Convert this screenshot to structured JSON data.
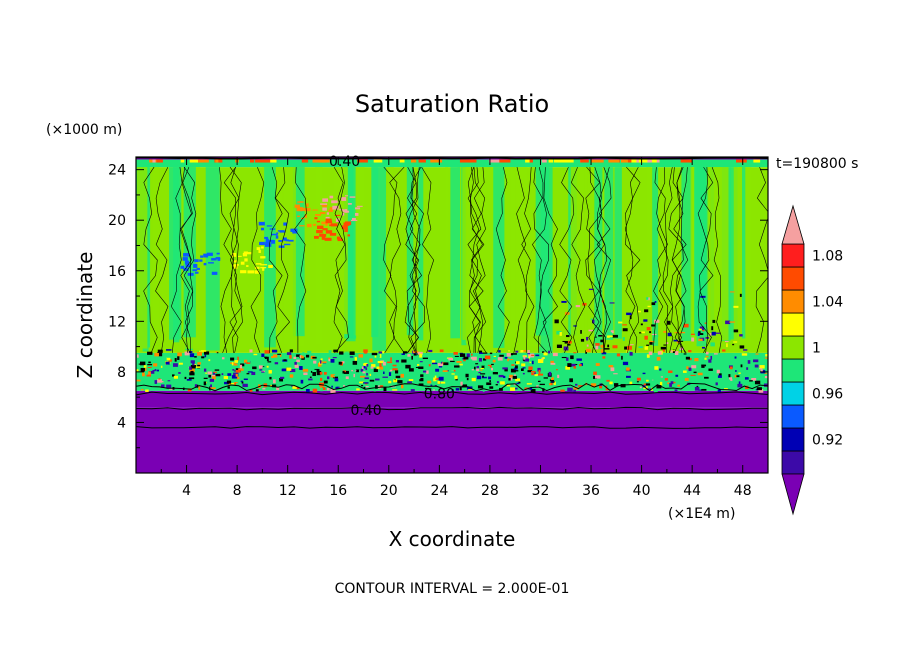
{
  "chart_data": {
    "type": "heatmap",
    "title": "Saturation Ratio",
    "xlabel": "X coordinate",
    "ylabel": "Z coordinate",
    "x_unit": "(×1E4 m)",
    "y_unit": "(×1000 m)",
    "time_label": "t=190800 s",
    "footer": "CONTOUR INTERVAL = 2.000E-01",
    "xlim": [
      0,
      50
    ],
    "ylim": [
      0,
      25
    ],
    "x_ticks": [
      4,
      8,
      12,
      16,
      20,
      24,
      28,
      32,
      36,
      40,
      44,
      48
    ],
    "y_ticks": [
      4,
      8,
      12,
      16,
      20,
      24
    ],
    "contour_labels": [
      {
        "text": "0.40",
        "x": 18.2,
        "y": 5.0
      },
      {
        "text": "0.80",
        "x": 24.0,
        "y": 6.3
      },
      {
        "text": "0.40",
        "x": 16.5,
        "y": 24.7
      }
    ],
    "colorbar": {
      "bins": [
        {
          "color": "#7a00b4",
          "label": ""
        },
        {
          "color": "#3c0aa8",
          "label": "0.92"
        },
        {
          "color": "#0000b4",
          "label": ""
        },
        {
          "color": "#0a5aff",
          "label": "0.96"
        },
        {
          "color": "#00d2e6",
          "label": ""
        },
        {
          "color": "#1ee678",
          "label": "1"
        },
        {
          "color": "#8ce600",
          "label": ""
        },
        {
          "color": "#ffff00",
          "label": "1.04"
        },
        {
          "color": "#ff8c00",
          "label": ""
        },
        {
          "color": "#ff4b00",
          "label": "1.08"
        },
        {
          "color": "#ff1e1e",
          "label": ""
        },
        {
          "color": "#f5a0a0",
          "label": ""
        }
      ]
    },
    "layers": [
      {
        "from": 0,
        "to": 3.6,
        "color": "#7a00b4"
      },
      {
        "from": 3.6,
        "to": 5.2,
        "color": "#7a00b4"
      },
      {
        "from": 5.2,
        "to": 6.5,
        "color": "#7a00b4"
      },
      {
        "from": 6.5,
        "to": 9.5,
        "color": "#1ee678"
      },
      {
        "from": 9.5,
        "to": 24.2,
        "color": "#8ce600"
      },
      {
        "from": 24.2,
        "to": 24.8,
        "color": "#1ee678"
      },
      {
        "from": 24.8,
        "to": 25,
        "color": "#7a00b4"
      }
    ]
  }
}
